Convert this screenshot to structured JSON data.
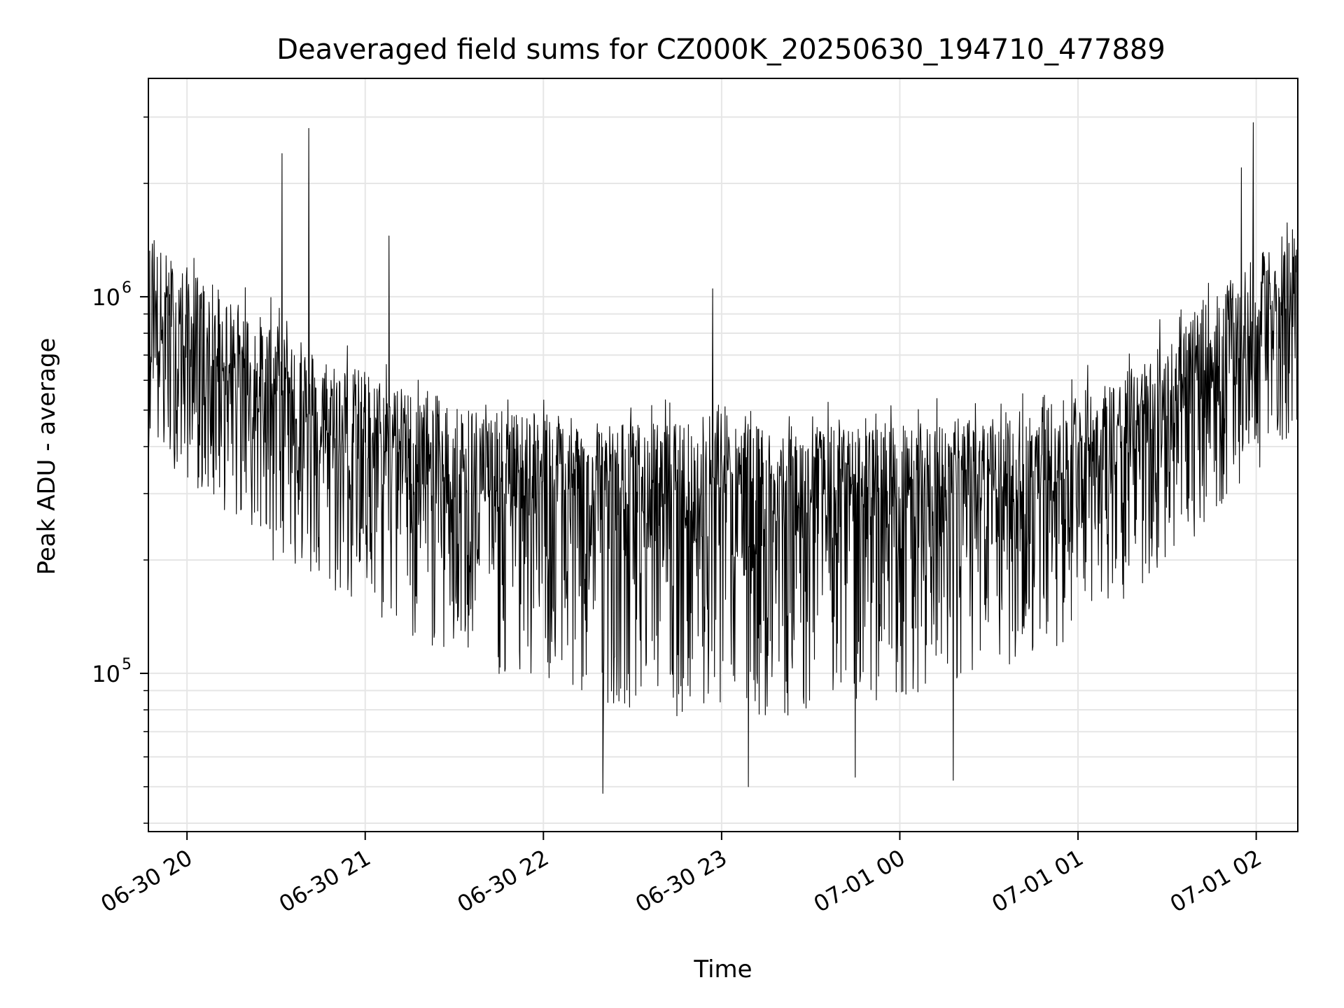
{
  "chart_data": {
    "type": "line",
    "title": "Deaveraged field sums for CZ000K_20250630_194710_477889",
    "xlabel": "Time",
    "ylabel": "Peak ADU - average",
    "x_tick_labels": [
      "06-30 20",
      "06-30 21",
      "06-30 22",
      "06-30 23",
      "07-01 00",
      "07-01 01",
      "07-01 02"
    ],
    "y_tick_labels": [
      {
        "base": "10",
        "exp": "5",
        "value": 100000
      },
      {
        "base": "10",
        "exp": "6",
        "value": 1000000
      }
    ],
    "xlim": [
      "2025-06-30 19:47",
      "2025-07-01 02:14"
    ],
    "ylim": [
      38000,
      3800000
    ],
    "y_scale": "log",
    "grid": true,
    "line_color": "#000000",
    "grid_color": "#e6e6e6",
    "series": [
      {
        "baseline_trend": [
          {
            "x": "2025-06-30 19:47",
            "y": 800000
          },
          {
            "x": "2025-06-30 20:15",
            "y": 560000
          },
          {
            "x": "2025-06-30 20:45",
            "y": 400000
          },
          {
            "x": "2025-06-30 21:15",
            "y": 320000
          },
          {
            "x": "2025-06-30 21:45",
            "y": 280000
          },
          {
            "x": "2025-06-30 22:15",
            "y": 265000
          },
          {
            "x": "2025-06-30 22:45",
            "y": 260000
          },
          {
            "x": "2025-06-30 23:15",
            "y": 255000
          },
          {
            "x": "2025-06-30 23:45",
            "y": 255000
          },
          {
            "x": "2025-07-01 00:15",
            "y": 262000
          },
          {
            "x": "2025-07-01 00:45",
            "y": 285000
          },
          {
            "x": "2025-07-01 01:15",
            "y": 350000
          },
          {
            "x": "2025-07-01 01:45",
            "y": 560000
          },
          {
            "x": "2025-07-01 02:14",
            "y": 900000
          }
        ],
        "notable_peaks": [
          {
            "x": "2025-06-30 20:32",
            "y": 2400000
          },
          {
            "x": "2025-06-30 20:41",
            "y": 2800000
          },
          {
            "x": "2025-06-30 21:08",
            "y": 1450000
          },
          {
            "x": "2025-06-30 22:57",
            "y": 1050000
          },
          {
            "x": "2025-07-01 01:59",
            "y": 2900000
          },
          {
            "x": "2025-07-01 01:55",
            "y": 2200000
          }
        ],
        "notable_dips": [
          {
            "x": "2025-06-30 20:29",
            "y": 200000
          },
          {
            "x": "2025-06-30 22:20",
            "y": 48000
          },
          {
            "x": "2025-06-30 23:09",
            "y": 50000
          },
          {
            "x": "2025-06-30 23:45",
            "y": 53000
          },
          {
            "x": "2025-07-01 00:18",
            "y": 52000
          }
        ]
      }
    ]
  }
}
